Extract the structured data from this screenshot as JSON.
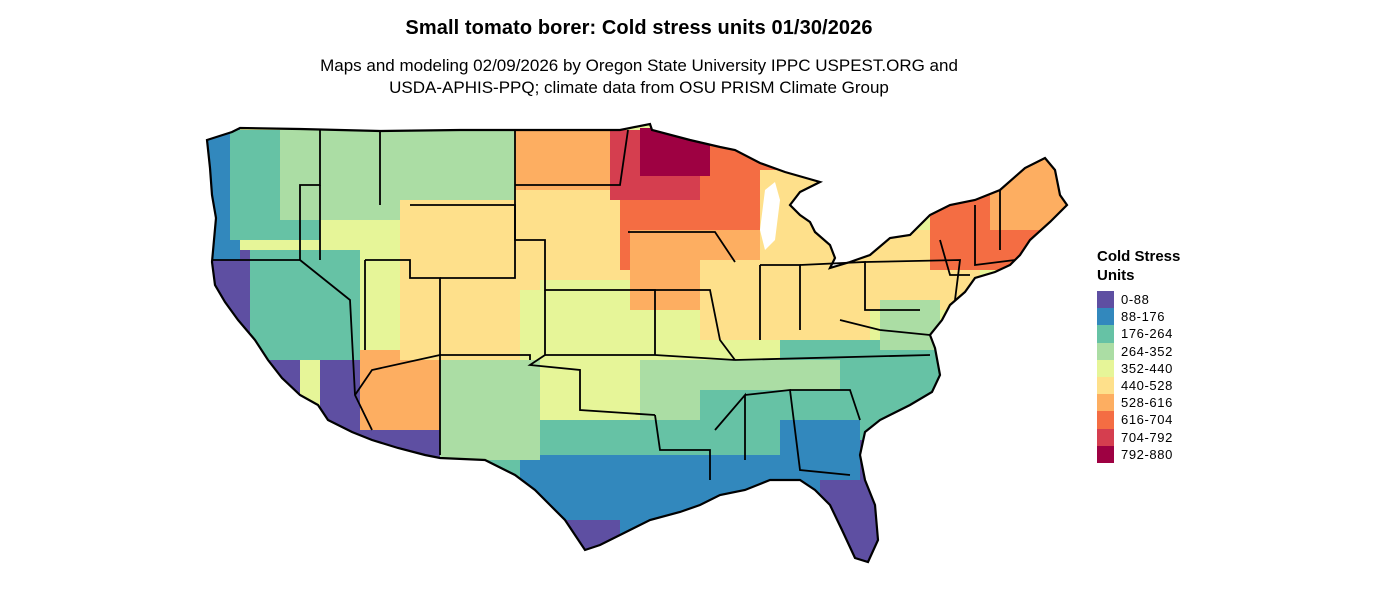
{
  "map": {
    "title": "Small tomato borer: Cold stress units 01/30/2026",
    "subtitle_line1": "Maps and modeling 02/09/2026 by Oregon State University IPPC USPEST.ORG and",
    "subtitle_line2": "USDA-APHIS-PPQ; climate data from OSU PRISM Climate Group"
  },
  "legend": {
    "title_line1": "Cold Stress",
    "title_line2": "Units",
    "items": [
      {
        "label": "0-88",
        "color": "#5e4fa2"
      },
      {
        "label": "88-176",
        "color": "#3288bd"
      },
      {
        "label": "176-264",
        "color": "#66c2a5"
      },
      {
        "label": "264-352",
        "color": "#abdda4"
      },
      {
        "label": "352-440",
        "color": "#e6f598"
      },
      {
        "label": "440-528",
        "color": "#fee08b"
      },
      {
        "label": "528-616",
        "color": "#fdae61"
      },
      {
        "label": "616-704",
        "color": "#f46d43"
      },
      {
        "label": "704-792",
        "color": "#d53e4f"
      },
      {
        "label": "792-880",
        "color": "#9e0142"
      }
    ]
  }
}
